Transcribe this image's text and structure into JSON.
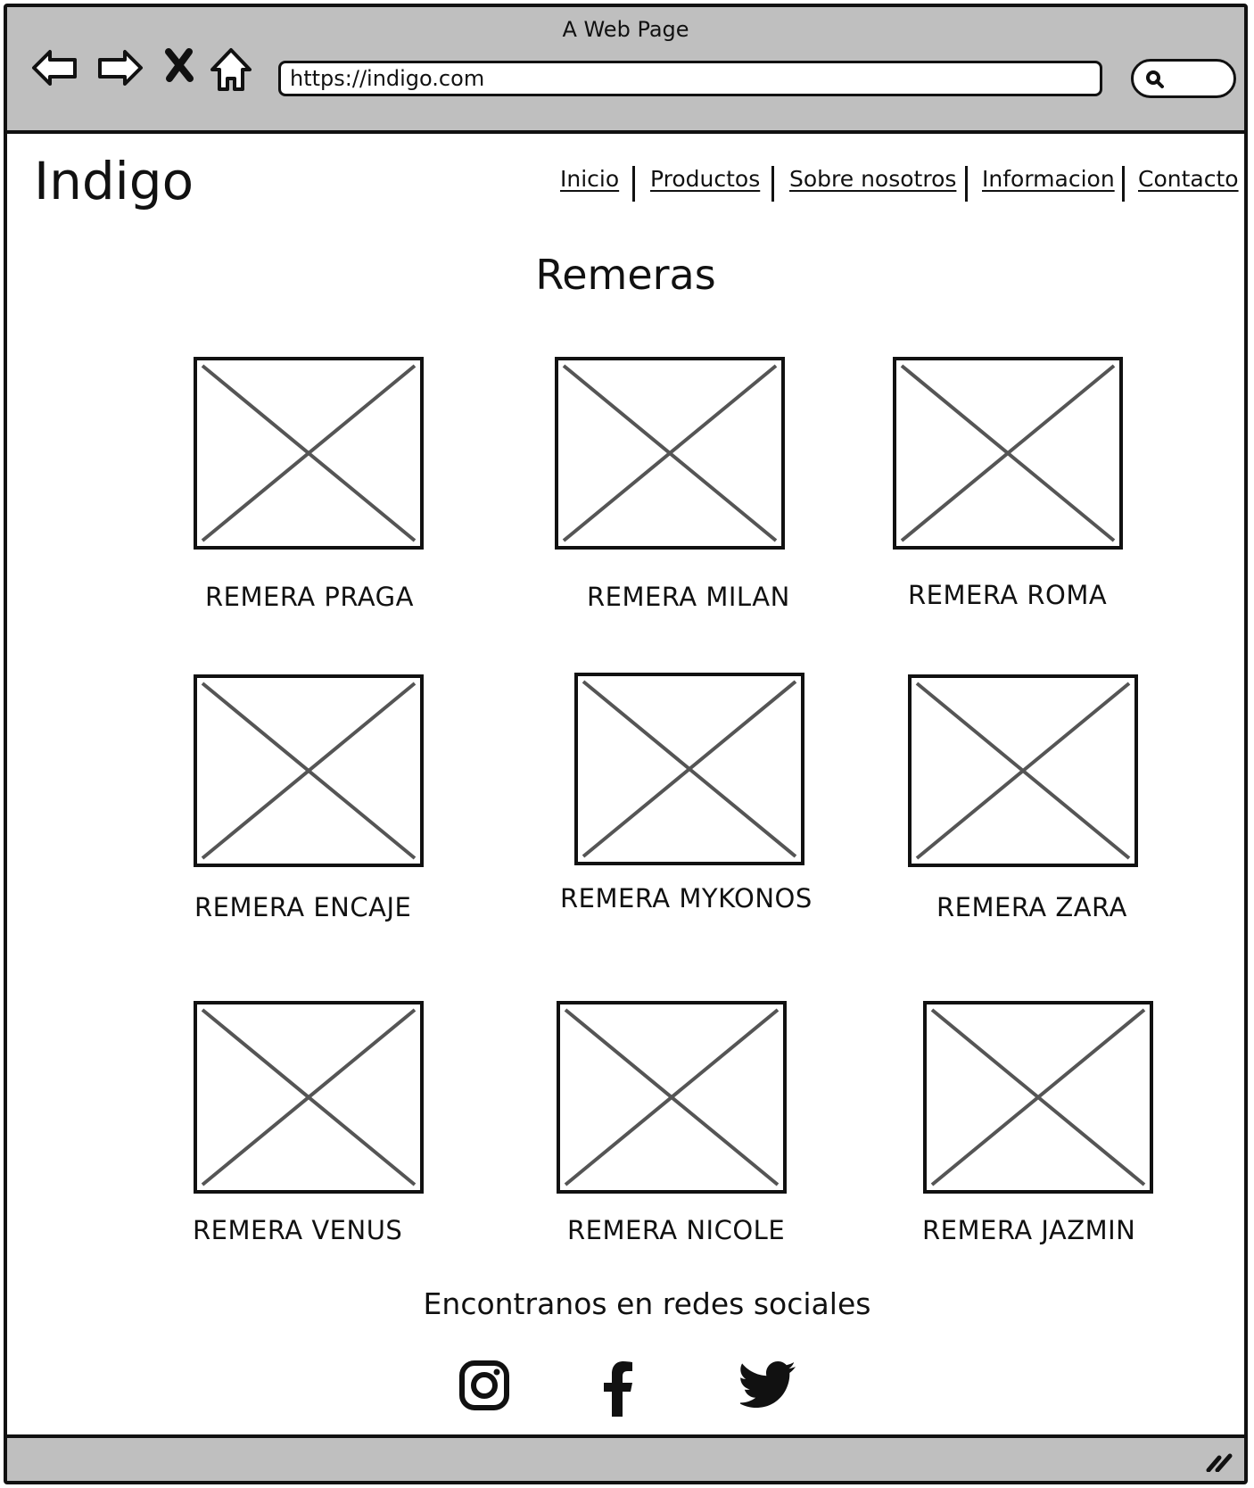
{
  "browser": {
    "window_title": "A Web Page",
    "url": "https://indigo.com"
  },
  "site": {
    "brand": "Indigo",
    "nav": [
      "Inicio",
      "Productos",
      "Sobre nosotros",
      "Informacion",
      "Contacto"
    ],
    "page_title": "Remeras"
  },
  "products": [
    {
      "name": "REMERA PRAGA"
    },
    {
      "name": "REMERA MILAN"
    },
    {
      "name": "REMERA ROMA"
    },
    {
      "name": "REMERA ENCAJE"
    },
    {
      "name": "REMERA MYKONOS"
    },
    {
      "name": "REMERA ZARA"
    },
    {
      "name": "REMERA VENUS"
    },
    {
      "name": "REMERA NICOLE"
    },
    {
      "name": "REMERA JAZMIN"
    }
  ],
  "social": {
    "title": "Encontranos en redes sociales",
    "icons": [
      "instagram-icon",
      "facebook-icon",
      "twitter-icon"
    ]
  }
}
